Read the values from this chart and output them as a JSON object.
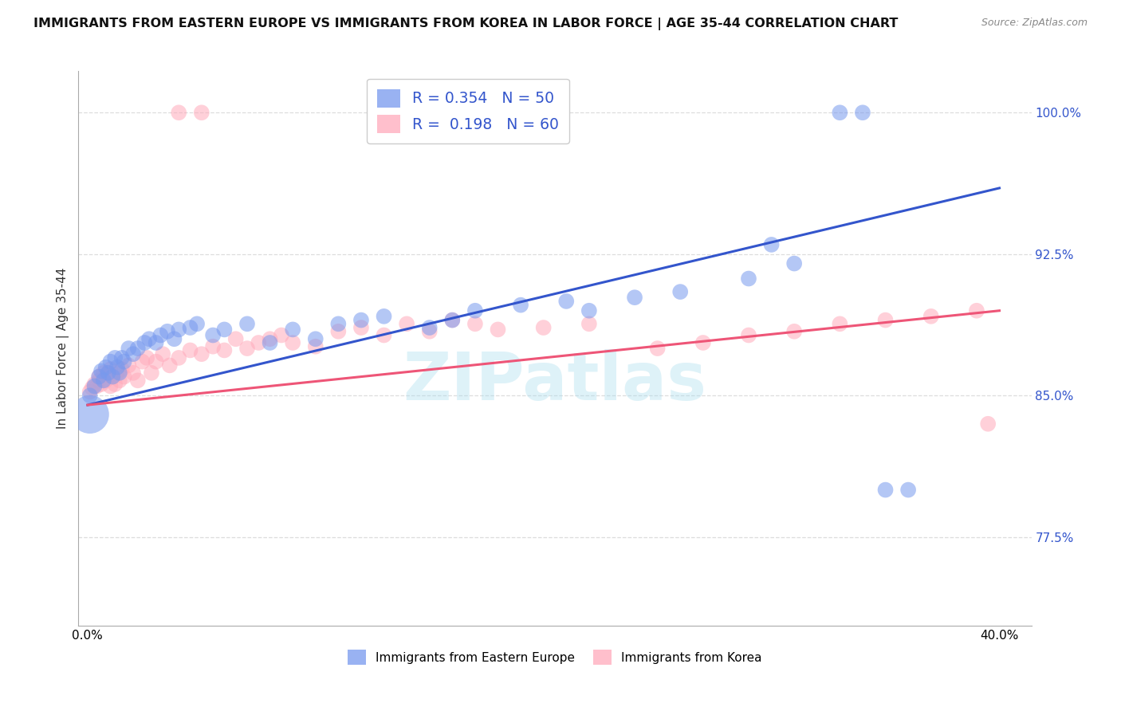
{
  "title": "IMMIGRANTS FROM EASTERN EUROPE VS IMMIGRANTS FROM KOREA IN LABOR FORCE | AGE 35-44 CORRELATION CHART",
  "source": "Source: ZipAtlas.com",
  "ylabel": "In Labor Force | Age 35-44",
  "ytick_labels": [
    "77.5%",
    "85.0%",
    "92.5%",
    "100.0%"
  ],
  "ytick_values": [
    0.775,
    0.85,
    0.925,
    1.0
  ],
  "xlim": [
    -0.004,
    0.414
  ],
  "ylim": [
    0.728,
    1.022
  ],
  "x_tick_left": "0.0%",
  "x_tick_right": "40.0%",
  "legend1_label": "R = 0.354   N = 50",
  "legend2_label": "R =  0.198   N = 60",
  "legend1_color": "#7799ee",
  "legend2_color": "#ffaabb",
  "line1_color": "#3355cc",
  "line2_color": "#ee5577",
  "watermark": "ZIPatlas",
  "bottom_label1": "Immigrants from Eastern Europe",
  "bottom_label2": "Immigrants from Korea",
  "grid_color": "#dddddd",
  "ee_x": [
    0.001,
    0.003,
    0.005,
    0.006,
    0.007,
    0.008,
    0.009,
    0.01,
    0.011,
    0.012,
    0.013,
    0.014,
    0.015,
    0.016,
    0.018,
    0.02,
    0.022,
    0.025,
    0.027,
    0.03,
    0.032,
    0.035,
    0.038,
    0.04,
    0.045,
    0.048,
    0.055,
    0.06,
    0.07,
    0.08,
    0.09,
    0.1,
    0.11,
    0.12,
    0.13,
    0.15,
    0.16,
    0.17,
    0.19,
    0.21,
    0.22,
    0.24,
    0.26,
    0.29,
    0.3,
    0.31,
    0.33,
    0.34,
    0.35,
    0.36
  ],
  "ee_y": [
    0.85,
    0.855,
    0.86,
    0.863,
    0.858,
    0.865,
    0.862,
    0.868,
    0.86,
    0.87,
    0.865,
    0.862,
    0.87,
    0.868,
    0.875,
    0.872,
    0.875,
    0.878,
    0.88,
    0.878,
    0.882,
    0.884,
    0.88,
    0.885,
    0.886,
    0.888,
    0.882,
    0.885,
    0.888,
    0.878,
    0.885,
    0.88,
    0.888,
    0.89,
    0.892,
    0.886,
    0.89,
    0.895,
    0.898,
    0.9,
    0.895,
    0.902,
    0.905,
    0.912,
    0.93,
    0.92,
    1.0,
    1.0,
    0.8,
    0.8
  ],
  "ee_sizes": [
    50,
    50,
    50,
    50,
    50,
    50,
    50,
    50,
    50,
    50,
    50,
    50,
    50,
    50,
    50,
    50,
    50,
    50,
    50,
    50,
    50,
    50,
    50,
    50,
    50,
    50,
    50,
    50,
    50,
    50,
    50,
    50,
    50,
    50,
    50,
    50,
    50,
    50,
    50,
    50,
    50,
    50,
    50,
    50,
    50,
    50,
    50,
    50,
    50,
    50
  ],
  "kr_x": [
    0.001,
    0.002,
    0.003,
    0.004,
    0.005,
    0.005,
    0.006,
    0.007,
    0.008,
    0.009,
    0.01,
    0.01,
    0.011,
    0.012,
    0.013,
    0.014,
    0.015,
    0.016,
    0.018,
    0.02,
    0.022,
    0.024,
    0.026,
    0.028,
    0.03,
    0.033,
    0.036,
    0.04,
    0.045,
    0.05,
    0.055,
    0.06,
    0.065,
    0.07,
    0.075,
    0.08,
    0.085,
    0.09,
    0.1,
    0.11,
    0.12,
    0.13,
    0.14,
    0.15,
    0.16,
    0.17,
    0.18,
    0.2,
    0.22,
    0.25,
    0.27,
    0.29,
    0.31,
    0.33,
    0.35,
    0.37,
    0.39,
    0.395,
    0.04,
    0.05
  ],
  "kr_y": [
    0.852,
    0.854,
    0.856,
    0.855,
    0.858,
    0.86,
    0.856,
    0.862,
    0.858,
    0.862,
    0.855,
    0.864,
    0.86,
    0.856,
    0.862,
    0.858,
    0.864,
    0.86,
    0.866,
    0.862,
    0.858,
    0.868,
    0.87,
    0.862,
    0.868,
    0.872,
    0.866,
    0.87,
    0.874,
    0.872,
    0.876,
    0.874,
    0.88,
    0.875,
    0.878,
    0.88,
    0.882,
    0.878,
    0.876,
    0.884,
    0.886,
    0.882,
    0.888,
    0.884,
    0.89,
    0.888,
    0.885,
    0.886,
    0.888,
    0.875,
    0.878,
    0.882,
    0.884,
    0.888,
    0.89,
    0.892,
    0.895,
    0.835,
    1.0,
    1.0
  ],
  "large_ee_x": [
    0.001
  ],
  "large_ee_y": [
    0.84
  ],
  "large_ee_size": [
    1200
  ]
}
